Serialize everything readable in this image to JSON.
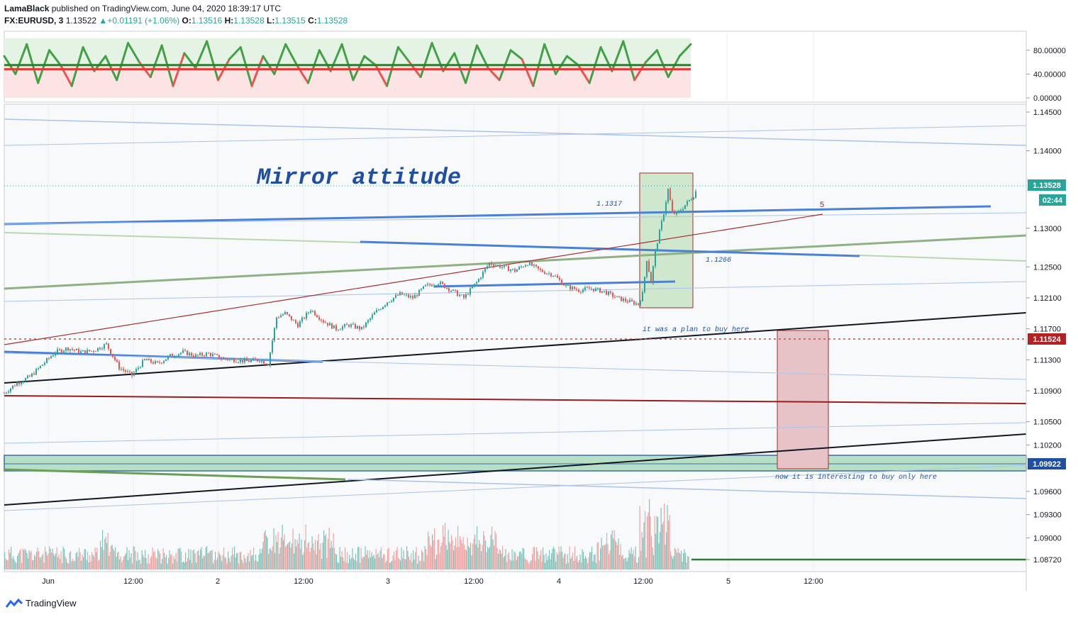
{
  "header": {
    "author": "LamaBlack",
    "published_text": "published on TradingView.com, June 04, 2020 18:39:17 UTC",
    "symbol": "FX:EURUSD, 3",
    "last": "1.13522",
    "change": "+0.01191 (+1.06%)",
    "o_label": "O:",
    "o_value": "1.13516",
    "h_label": "H:",
    "h_value": "1.13528",
    "l_label": "L:",
    "l_value": "1.13515",
    "c_label": "C:",
    "c_value": "1.13528"
  },
  "chart_data": {
    "type": "candlestick",
    "title": "Mirror attitude",
    "price_axis_ticks": [
      "1.14500",
      "1.14000",
      "1.13000",
      "1.12500",
      "1.12100",
      "1.11700",
      "1.11300",
      "1.10900",
      "1.10500",
      "1.10200",
      "1.09600",
      "1.09300",
      "1.09000",
      "1.08720"
    ],
    "oscillator_ticks": [
      "80.00000",
      "40.00000",
      "0.00000"
    ],
    "time_axis_ticks": [
      "Jun",
      "12:00",
      "2",
      "12:00",
      "3",
      "12:00",
      "4",
      "12:00",
      "5",
      "12:00"
    ],
    "price_labels": {
      "current": "1.13528",
      "countdown": "02:44",
      "dotted_level": "1.11524",
      "zone_level": "1.09922"
    },
    "annotations": {
      "level_1317": "1.1317",
      "level_1266": "1.1266",
      "wave_label": "5",
      "plan_note": "it was a plan to buy here",
      "now_note": "now it is interesting to buy only here"
    },
    "price_path": [
      [
        0,
        1.1087
      ],
      [
        3,
        1.11
      ],
      [
        6,
        1.1108
      ],
      [
        9,
        1.1124
      ],
      [
        12,
        1.114
      ],
      [
        15,
        1.1145
      ],
      [
        18,
        1.114
      ],
      [
        21,
        1.1142
      ],
      [
        24,
        1.115
      ],
      [
        27,
        1.112
      ],
      [
        30,
        1.111
      ],
      [
        33,
        1.113
      ],
      [
        36,
        1.1125
      ],
      [
        39,
        1.1135
      ],
      [
        42,
        1.114
      ],
      [
        45,
        1.1135
      ],
      [
        48,
        1.1138
      ],
      [
        51,
        1.1132
      ],
      [
        54,
        1.113
      ],
      [
        57,
        1.1128
      ],
      [
        60,
        1.113
      ],
      [
        62,
        1.1125
      ],
      [
        64,
        1.1185
      ],
      [
        66,
        1.119
      ],
      [
        69,
        1.1175
      ],
      [
        72,
        1.1195
      ],
      [
        75,
        1.118
      ],
      [
        78,
        1.117
      ],
      [
        81,
        1.1175
      ],
      [
        84,
        1.117
      ],
      [
        87,
        1.119
      ],
      [
        90,
        1.1205
      ],
      [
        93,
        1.1215
      ],
      [
        96,
        1.121
      ],
      [
        99,
        1.1225
      ],
      [
        102,
        1.123
      ],
      [
        105,
        1.122
      ],
      [
        108,
        1.121
      ],
      [
        111,
        1.123
      ],
      [
        114,
        1.1255
      ],
      [
        117,
        1.125
      ],
      [
        120,
        1.1245
      ],
      [
        123,
        1.1255
      ],
      [
        126,
        1.1245
      ],
      [
        129,
        1.124
      ],
      [
        132,
        1.1225
      ],
      [
        135,
        1.122
      ],
      [
        138,
        1.1222
      ],
      [
        141,
        1.1218
      ],
      [
        144,
        1.121
      ],
      [
        147,
        1.1205
      ],
      [
        149,
        1.1202
      ],
      [
        150,
        1.1215
      ],
      [
        151,
        1.126
      ],
      [
        152,
        1.123
      ],
      [
        153,
        1.127
      ],
      [
        155,
        1.132
      ],
      [
        156,
        1.135
      ],
      [
        157,
        1.132
      ],
      [
        158,
        1.1318
      ],
      [
        160,
        1.133
      ],
      [
        162,
        1.1342
      ],
      [
        163,
        1.1353
      ]
    ],
    "oscillator": {
      "ylim": [
        0,
        100
      ],
      "upper_line": 55,
      "lower_line": 48,
      "values": [
        70,
        40,
        90,
        25,
        80,
        55,
        20,
        85,
        45,
        70,
        30,
        92,
        60,
        35,
        88,
        20,
        75,
        50,
        95,
        30,
        65,
        85,
        20,
        70,
        40,
        90,
        55,
        25,
        80,
        45,
        90,
        30,
        70,
        55,
        20,
        85,
        60,
        35,
        92,
        45,
        75,
        25,
        88,
        50,
        30,
        80,
        65,
        20,
        90,
        40,
        70,
        55,
        25,
        85,
        45,
        95,
        30,
        60,
        80,
        35,
        70,
        90
      ]
    },
    "price_range": [
      1.0865,
      1.1465
    ],
    "time_range": [
      0,
      240
    ]
  },
  "footer": {
    "brand": "TradingView"
  }
}
